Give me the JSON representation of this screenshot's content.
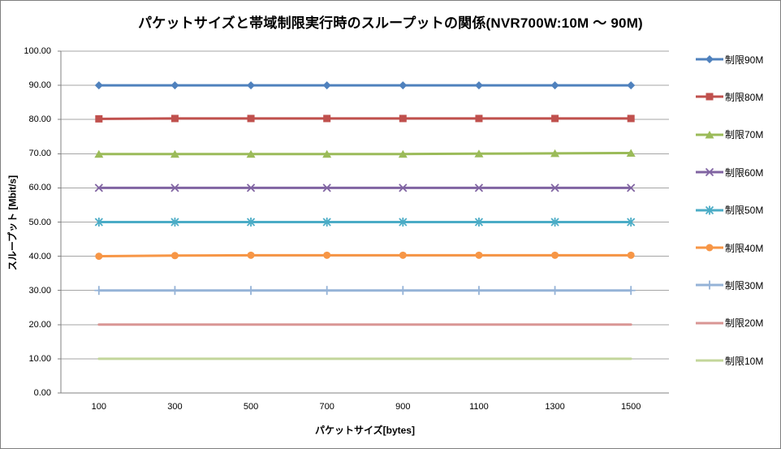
{
  "window": {
    "background": "#ffffff",
    "border_color": "#7f7f7f"
  },
  "chart_data": {
    "type": "line",
    "title": "パケットサイズと帯域制限実行時のスループットの関係(NVR700W:10M ～ 90M)",
    "xlabel": "パケットサイズ[bytes]",
    "ylabel": "スループット [Mbit/s]",
    "x_categories": [
      "100",
      "300",
      "500",
      "700",
      "900",
      "1100",
      "1300",
      "1500"
    ],
    "ylim": [
      0,
      100
    ],
    "y_tick_labels": [
      "0.00",
      "10.00",
      "20.00",
      "30.00",
      "40.00",
      "50.00",
      "60.00",
      "70.00",
      "80.00",
      "90.00",
      "100.00"
    ],
    "grid": true,
    "gridline_color": "#a6a6a6",
    "axis_color": "#808080",
    "legend_position": "right",
    "series": [
      {
        "id": "limit-90m",
        "name": "制限90M",
        "color": "#4f81bd",
        "marker": "diamond",
        "values": [
          90.0,
          90.0,
          90.0,
          90.0,
          90.0,
          90.0,
          90.0,
          90.0
        ]
      },
      {
        "id": "limit-80m",
        "name": "制限80M",
        "color": "#c0504d",
        "marker": "square",
        "values": [
          80.2,
          80.3,
          80.3,
          80.3,
          80.3,
          80.3,
          80.3,
          80.3
        ]
      },
      {
        "id": "limit-70m",
        "name": "制限70M",
        "color": "#9bbb59",
        "marker": "triangle",
        "values": [
          69.9,
          69.9,
          69.9,
          69.9,
          69.9,
          70.0,
          70.1,
          70.2
        ]
      },
      {
        "id": "limit-60m",
        "name": "制限60M",
        "color": "#8064a2",
        "marker": "x",
        "values": [
          60.0,
          60.0,
          60.0,
          60.0,
          60.0,
          60.0,
          60.0,
          60.0
        ]
      },
      {
        "id": "limit-50m",
        "name": "制限50M",
        "color": "#4bacc6",
        "marker": "asterisk",
        "values": [
          50.0,
          50.0,
          50.0,
          50.0,
          50.0,
          50.0,
          50.0,
          50.0
        ]
      },
      {
        "id": "limit-40m",
        "name": "制限40M",
        "color": "#f79646",
        "marker": "circle",
        "values": [
          40.0,
          40.2,
          40.3,
          40.3,
          40.3,
          40.3,
          40.3,
          40.3
        ]
      },
      {
        "id": "limit-30m",
        "name": "制限30M",
        "color": "#95b3d7",
        "marker": "plus",
        "values": [
          30.0,
          30.0,
          30.0,
          30.0,
          30.0,
          30.0,
          30.0,
          30.0
        ]
      },
      {
        "id": "limit-20m",
        "name": "制限20M",
        "color": "#d99694",
        "marker": "dash",
        "values": [
          20.0,
          20.0,
          20.0,
          20.0,
          20.0,
          20.0,
          20.0,
          20.0
        ]
      },
      {
        "id": "limit-10m",
        "name": "制限10M",
        "color": "#c3d69b",
        "marker": "dash",
        "values": [
          10.0,
          10.0,
          10.0,
          10.0,
          10.0,
          10.0,
          10.0,
          10.0
        ]
      }
    ]
  }
}
